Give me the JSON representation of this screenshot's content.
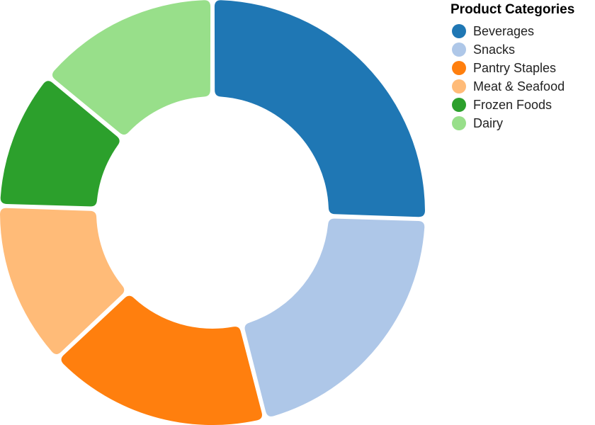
{
  "chart_data": {
    "type": "pie",
    "variant": "donut",
    "title": "",
    "legend": {
      "title": "Product Categories",
      "placement": "top-right"
    },
    "categories": [
      "Beverages",
      "Snacks",
      "Pantry Staples",
      "Meat & Seafood",
      "Frozen Foods",
      "Dairy"
    ],
    "values": [
      25.5,
      20.5,
      17,
      12.5,
      10.5,
      14
    ],
    "colors": [
      "#1f77b4",
      "#aec7e8",
      "#ff7f0e",
      "#ffbb78",
      "#2ca02c",
      "#98df8a"
    ]
  }
}
